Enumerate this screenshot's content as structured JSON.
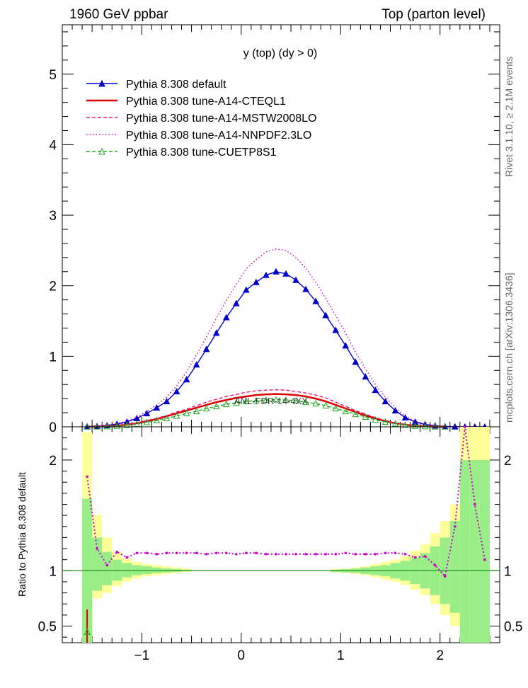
{
  "header": {
    "left_title": "1960 GeV ppbar",
    "right_title": "Top (parton level)",
    "plot_title": "y (top) (dy > 0)"
  },
  "side_text": {
    "rivet": "Rivet 3.1.10, ≥ 2.1M events",
    "mcplots": "mcplots.cern.ch [arXiv:1306.3436]"
  },
  "chart_data": [
    {
      "type": "line",
      "panel": "main",
      "xlim": [
        -1.8,
        2.6
      ],
      "ylim": [
        0,
        5.7
      ],
      "xlabel": "",
      "ylabel": "",
      "yticks": [
        "0",
        "1",
        "2",
        "3",
        "4",
        "5"
      ],
      "overlay_label": "ANL-FDR-14-4XX",
      "legend_position": "top-left",
      "series": [
        {
          "name": "Pythia 8.308 default",
          "color": "#0000cc",
          "style": "solid",
          "marker": "filled-triangle",
          "x": [
            -1.55,
            -1.45,
            -1.35,
            -1.25,
            -1.15,
            -1.05,
            -0.95,
            -0.85,
            -0.75,
            -0.65,
            -0.55,
            -0.45,
            -0.35,
            -0.25,
            -0.15,
            -0.05,
            0.05,
            0.15,
            0.25,
            0.35,
            0.45,
            0.55,
            0.65,
            0.75,
            0.85,
            0.95,
            1.05,
            1.15,
            1.25,
            1.35,
            1.45,
            1.55,
            1.65,
            1.75,
            1.85,
            1.95,
            2.05,
            2.15,
            2.25,
            2.35,
            2.45
          ],
          "y": [
            0.005,
            0.01,
            0.02,
            0.04,
            0.07,
            0.12,
            0.19,
            0.27,
            0.36,
            0.5,
            0.67,
            0.88,
            1.1,
            1.33,
            1.55,
            1.75,
            1.94,
            2.05,
            2.15,
            2.2,
            2.17,
            2.08,
            1.95,
            1.78,
            1.58,
            1.37,
            1.15,
            0.92,
            0.71,
            0.52,
            0.36,
            0.23,
            0.13,
            0.07,
            0.035,
            0.015,
            0.006,
            0.002,
            0.001,
            0.0005,
            0.0002
          ]
        },
        {
          "name": "Pythia 8.308 tune-A14-CTEQL1",
          "color": "#dd0000",
          "style": "solid",
          "marker": "none",
          "x": [
            -1.55,
            -1.45,
            -1.35,
            -1.25,
            -1.15,
            -1.05,
            -0.95,
            -0.85,
            -0.75,
            -0.65,
            -0.55,
            -0.45,
            -0.35,
            -0.25,
            -0.15,
            -0.05,
            0.05,
            0.15,
            0.25,
            0.35,
            0.45,
            0.55,
            0.65,
            0.75,
            0.85,
            0.95,
            1.05,
            1.15,
            1.25,
            1.35,
            1.45,
            1.55,
            1.65,
            1.75,
            1.85,
            1.95,
            2.05
          ],
          "y": [
            0.002,
            0.004,
            0.008,
            0.015,
            0.03,
            0.05,
            0.08,
            0.11,
            0.15,
            0.19,
            0.23,
            0.27,
            0.31,
            0.35,
            0.38,
            0.41,
            0.43,
            0.45,
            0.46,
            0.465,
            0.46,
            0.45,
            0.43,
            0.4,
            0.36,
            0.31,
            0.26,
            0.21,
            0.16,
            0.12,
            0.08,
            0.05,
            0.03,
            0.015,
            0.007,
            0.003,
            0.001
          ]
        },
        {
          "name": "Pythia 8.308 tune-A14-MSTW2008LO",
          "color": "#ee1177",
          "style": "dashed",
          "marker": "none",
          "x": [
            -1.55,
            -1.45,
            -1.35,
            -1.25,
            -1.15,
            -1.05,
            -0.95,
            -0.85,
            -0.75,
            -0.65,
            -0.55,
            -0.45,
            -0.35,
            -0.25,
            -0.15,
            -0.05,
            0.05,
            0.15,
            0.25,
            0.35,
            0.45,
            0.55,
            0.65,
            0.75,
            0.85,
            0.95,
            1.05,
            1.15,
            1.25,
            1.35,
            1.45,
            1.55,
            1.65,
            1.75,
            1.85,
            1.95,
            2.05
          ],
          "y": [
            0.002,
            0.005,
            0.009,
            0.017,
            0.033,
            0.055,
            0.09,
            0.12,
            0.16,
            0.21,
            0.25,
            0.3,
            0.35,
            0.39,
            0.43,
            0.46,
            0.49,
            0.51,
            0.52,
            0.525,
            0.52,
            0.5,
            0.48,
            0.45,
            0.41,
            0.35,
            0.29,
            0.23,
            0.18,
            0.13,
            0.09,
            0.055,
            0.032,
            0.016,
            0.008,
            0.003,
            0.001
          ]
        },
        {
          "name": "Pythia 8.308 tune-A14-NNPDF2.3LO",
          "color": "#cc00cc",
          "style": "dotted",
          "marker": "none",
          "x": [
            -1.55,
            -1.45,
            -1.35,
            -1.25,
            -1.15,
            -1.05,
            -0.95,
            -0.85,
            -0.75,
            -0.65,
            -0.55,
            -0.45,
            -0.35,
            -0.25,
            -0.15,
            -0.05,
            0.05,
            0.15,
            0.25,
            0.35,
            0.45,
            0.55,
            0.65,
            0.75,
            0.85,
            0.95,
            1.05,
            1.15,
            1.25,
            1.35,
            1.45,
            1.55,
            1.65,
            1.75,
            1.85,
            1.95,
            2.05,
            2.15,
            2.25,
            2.35,
            2.45
          ],
          "y": [
            0.006,
            0.012,
            0.024,
            0.047,
            0.083,
            0.14,
            0.22,
            0.31,
            0.42,
            0.58,
            0.78,
            1.02,
            1.27,
            1.54,
            1.79,
            2.02,
            2.24,
            2.37,
            2.48,
            2.52,
            2.5,
            2.4,
            2.25,
            2.05,
            1.82,
            1.58,
            1.33,
            1.06,
            0.82,
            0.6,
            0.42,
            0.27,
            0.15,
            0.08,
            0.04,
            0.017,
            0.007,
            0.003,
            0.001,
            0.0005,
            0.0002
          ]
        },
        {
          "name": "Pythia 8.308 tune-CUETP8S1",
          "color": "#22aa22",
          "style": "dashed",
          "marker": "open-triangle",
          "x": [
            -1.55,
            -1.45,
            -1.35,
            -1.25,
            -1.15,
            -1.05,
            -0.95,
            -0.85,
            -0.75,
            -0.65,
            -0.55,
            -0.45,
            -0.35,
            -0.25,
            -0.15,
            -0.05,
            0.05,
            0.15,
            0.25,
            0.35,
            0.45,
            0.55,
            0.65,
            0.75,
            0.85,
            0.95,
            1.05,
            1.15,
            1.25,
            1.35,
            1.45,
            1.55,
            1.65,
            1.75,
            1.85,
            1.95,
            2.05
          ],
          "y": [
            0.001,
            0.003,
            0.006,
            0.012,
            0.024,
            0.04,
            0.065,
            0.09,
            0.12,
            0.155,
            0.19,
            0.22,
            0.26,
            0.29,
            0.32,
            0.34,
            0.36,
            0.37,
            0.38,
            0.385,
            0.38,
            0.37,
            0.35,
            0.33,
            0.3,
            0.26,
            0.22,
            0.18,
            0.14,
            0.1,
            0.07,
            0.045,
            0.026,
            0.013,
            0.006,
            0.002,
            0.001
          ]
        }
      ]
    },
    {
      "type": "line",
      "panel": "ratio",
      "xlim": [
        -1.8,
        2.6
      ],
      "ylim": [
        0.35,
        2.3
      ],
      "ylabel": "Ratio to Pythia 8.308 default",
      "xticks": [
        "−1",
        "0",
        "1",
        "2"
      ],
      "yticks": [
        "0.5",
        "1",
        "2"
      ],
      "reference_line": 1.0,
      "bands": {
        "x_edges": [
          -1.6,
          -1.5,
          -1.4,
          -1.3,
          -1.2,
          -1.1,
          -1.0,
          -0.9,
          -0.8,
          -0.7,
          -0.6,
          -0.5,
          0.9,
          1.0,
          1.1,
          1.2,
          1.3,
          1.4,
          1.5,
          1.6,
          1.7,
          1.8,
          1.9,
          2.0,
          2.1,
          2.2,
          2.3,
          2.4,
          2.5
        ],
        "yellow_lo": [
          0.35,
          0.75,
          0.8,
          0.86,
          0.9,
          0.93,
          0.95,
          0.96,
          0.97,
          0.98,
          0.99,
          1.0,
          0.985,
          0.98,
          0.97,
          0.96,
          0.94,
          0.92,
          0.9,
          0.87,
          0.83,
          0.78,
          0.7,
          0.6,
          0.5,
          0.35,
          0.35,
          0.35
        ],
        "yellow_hi": [
          2.25,
          1.5,
          1.3,
          1.17,
          1.11,
          1.08,
          1.06,
          1.05,
          1.04,
          1.03,
          1.02,
          1.0,
          1.015,
          1.02,
          1.03,
          1.04,
          1.06,
          1.08,
          1.1,
          1.13,
          1.18,
          1.24,
          1.34,
          1.45,
          1.6,
          2.3,
          2.3,
          2.3
        ],
        "green_lo": [
          0.35,
          0.82,
          0.87,
          0.91,
          0.94,
          0.96,
          0.97,
          0.98,
          0.985,
          0.99,
          0.995,
          1.0,
          0.99,
          0.985,
          0.98,
          0.97,
          0.96,
          0.95,
          0.93,
          0.91,
          0.88,
          0.84,
          0.78,
          0.7,
          0.62,
          0.35,
          0.35,
          0.35
        ],
        "green_hi": [
          1.65,
          1.3,
          1.17,
          1.1,
          1.07,
          1.05,
          1.04,
          1.03,
          1.02,
          1.015,
          1.01,
          1.0,
          1.01,
          1.015,
          1.02,
          1.03,
          1.04,
          1.05,
          1.07,
          1.09,
          1.12,
          1.16,
          1.22,
          1.3,
          1.45,
          2.0,
          2.0,
          2.0
        ]
      },
      "series": [
        {
          "name": "Pythia 8.308 tune-A14-NNPDF2.3LO",
          "color": "#cc00cc",
          "x": [
            -1.55,
            -1.45,
            -1.35,
            -1.25,
            -1.15,
            -1.05,
            -0.95,
            -0.85,
            -0.75,
            -0.65,
            -0.55,
            -0.45,
            -0.35,
            -0.25,
            -0.15,
            -0.05,
            0.05,
            0.15,
            0.25,
            0.35,
            0.45,
            0.55,
            0.65,
            0.75,
            0.85,
            0.95,
            1.05,
            1.15,
            1.25,
            1.35,
            1.45,
            1.55,
            1.65,
            1.75,
            1.85,
            1.95,
            2.05,
            2.15,
            2.25,
            2.35,
            2.45
          ],
          "y": [
            1.85,
            1.2,
            1.05,
            1.17,
            1.12,
            1.16,
            1.16,
            1.15,
            1.16,
            1.16,
            1.16,
            1.16,
            1.15,
            1.16,
            1.16,
            1.15,
            1.16,
            1.16,
            1.15,
            1.15,
            1.15,
            1.15,
            1.15,
            1.15,
            1.15,
            1.15,
            1.16,
            1.15,
            1.15,
            1.15,
            1.16,
            1.16,
            1.15,
            1.12,
            1.13,
            1.05,
            0.95,
            1.4,
            2.3,
            1.6,
            1.1
          ]
        }
      ]
    }
  ]
}
